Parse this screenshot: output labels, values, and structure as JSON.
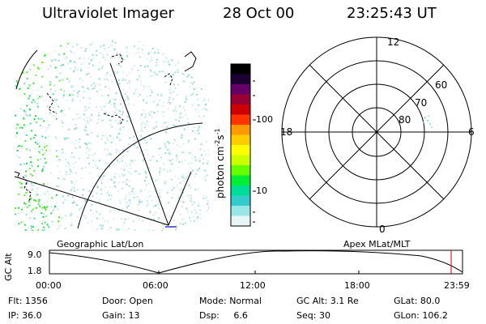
{
  "header": {
    "instrument": "Ultraviolet Imager",
    "date": "28 Oct 00",
    "time": "23:25:43 UT"
  },
  "colorbar": {
    "unit_label": "photon cm",
    "unit_sup1": "-2",
    "unit_mid": "s",
    "unit_sup2": "-1",
    "tick_high": "100",
    "tick_low": "10",
    "colors": [
      "#000000",
      "#1a0033",
      "#660066",
      "#990033",
      "#cc0000",
      "#ff3300",
      "#ff9900",
      "#ffcc00",
      "#ffff00",
      "#ccff00",
      "#66ff00",
      "#00ee33",
      "#00dd99",
      "#33cccc",
      "#99e6e6",
      "#e6f5f5"
    ]
  },
  "left_map": {
    "caption": "Geographic Lat/Lon"
  },
  "polar_plot": {
    "caption": "Apex MLat/MLT",
    "mlt_labels": {
      "top": "12",
      "left": "18",
      "right": "6",
      "bottom": "0"
    },
    "lat_labels": [
      "60",
      "70",
      "80"
    ]
  },
  "alt_plot": {
    "ylabel": "GC Alt",
    "y_high": "9.0",
    "y_low": "1.8",
    "x_ticks": [
      "00:00",
      "06:00",
      "12:00",
      "18:00",
      "23:59"
    ]
  },
  "status": {
    "flt_label": "Flt:",
    "flt_value": "1356",
    "ip_label": "IP:",
    "ip_value": "36.0",
    "door_label": "Door:",
    "door_value": "Open",
    "gain_label": "Gain:",
    "gain_value": "13",
    "mode_label": "Mode:",
    "mode_value": "Normal",
    "dsp_label": "Dsp:",
    "dsp_value": "6.6",
    "gcalt_label": "GC Alt:",
    "gcalt_value": "3.1 Re",
    "seq_label": "Seq:",
    "seq_value": "30",
    "glat_label": "GLat:",
    "glat_value": "80.0",
    "glon_label": "GLon:",
    "glon_value": "106.2"
  }
}
